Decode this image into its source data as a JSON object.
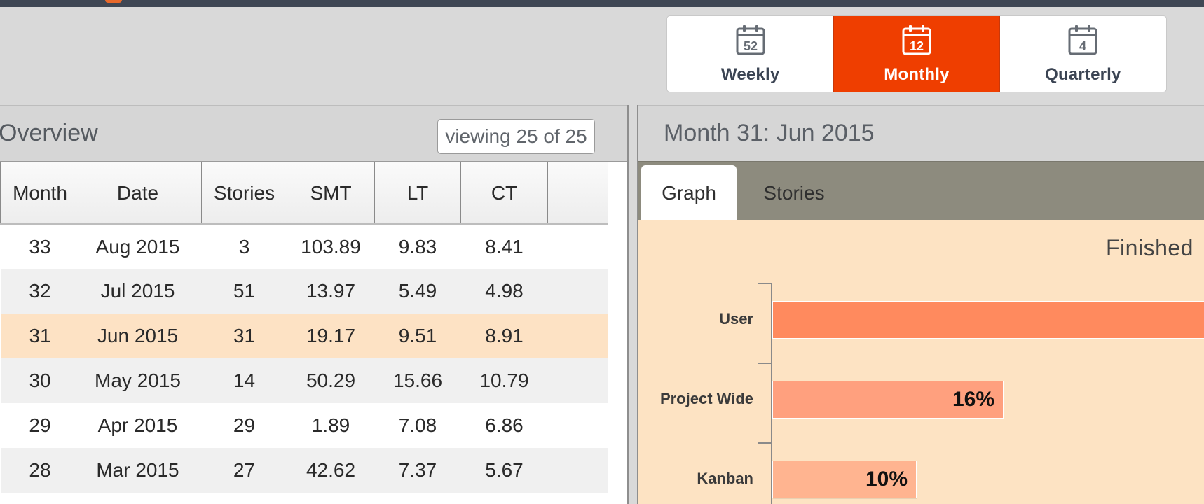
{
  "period_switcher": {
    "options": [
      {
        "label": "Weekly",
        "icon": "calendar-icon",
        "number": "52",
        "active": false
      },
      {
        "label": "Monthly",
        "icon": "calendar-icon",
        "number": "12",
        "active": true
      },
      {
        "label": "Quarterly",
        "icon": "calendar-icon",
        "number": "4",
        "active": false
      }
    ],
    "active_color": "#ef3e00"
  },
  "overview": {
    "title": "Overview",
    "viewing": "viewing 25 of 25",
    "columns": [
      "Month",
      "Date",
      "Stories",
      "SMT",
      "LT",
      "CT"
    ],
    "rows": [
      [
        "33",
        "Aug 2015",
        "3",
        "103.89",
        "9.83",
        "8.41"
      ],
      [
        "32",
        "Jul 2015",
        "51",
        "13.97",
        "5.49",
        "4.98"
      ],
      [
        "31",
        "Jun 2015",
        "31",
        "19.17",
        "9.51",
        "8.91"
      ],
      [
        "30",
        "May 2015",
        "14",
        "50.29",
        "15.66",
        "10.79"
      ],
      [
        "29",
        "Apr 2015",
        "29",
        "1.89",
        "7.08",
        "6.86"
      ],
      [
        "28",
        "Mar 2015",
        "27",
        "42.62",
        "7.37",
        "5.67"
      ]
    ],
    "selected_row": 2
  },
  "detail": {
    "title": "Month 31: Jun 2015",
    "tabs": [
      {
        "label": "Graph",
        "active": true
      },
      {
        "label": "Stories",
        "active": false
      }
    ],
    "chart_data": {
      "type": "bar",
      "orientation": "horizontal",
      "title": "Finished",
      "categories": [
        "User",
        "Project Wide",
        "Kanban"
      ],
      "values": [
        null,
        16,
        10
      ],
      "value_labels": [
        "",
        "16%",
        "10%"
      ],
      "unit": "%",
      "bar_colors": [
        "#ff8a5e",
        "#ffa07e",
        "#ffb490"
      ]
    }
  }
}
